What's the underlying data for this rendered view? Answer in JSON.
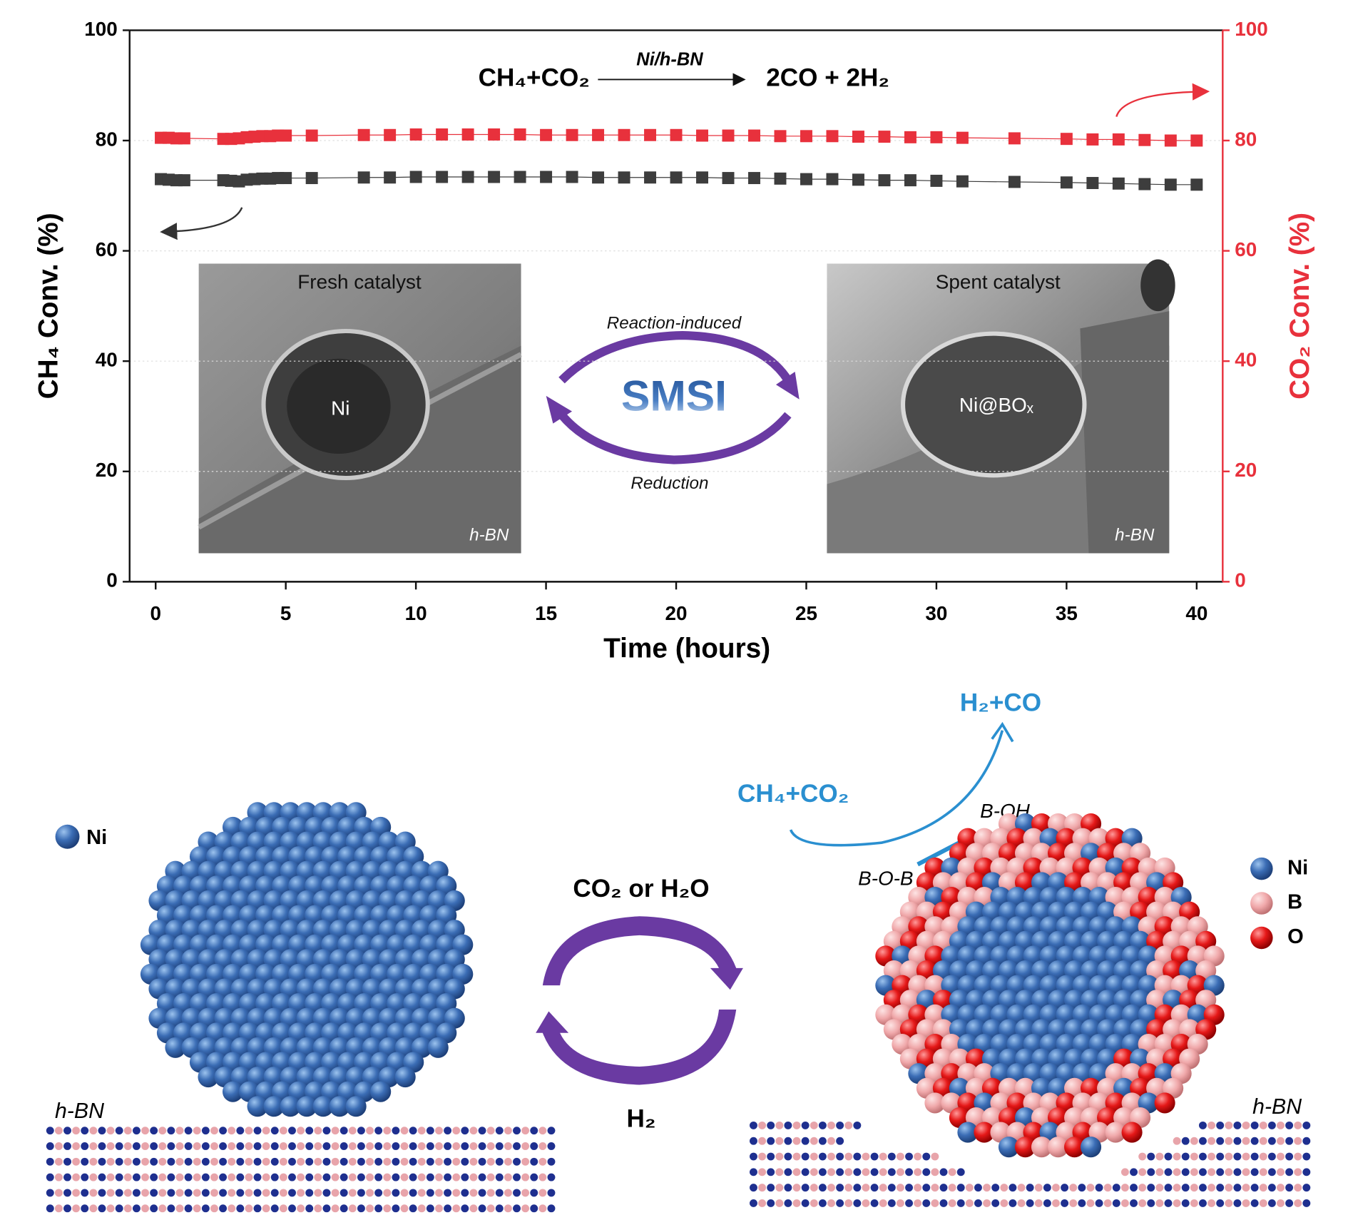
{
  "chart_data": {
    "type": "line",
    "equation": {
      "reactants": "CH₄+CO₂",
      "catalyst": "Ni/h-BN",
      "products": "2CO + 2H₂"
    },
    "x_label": "Time (hours)",
    "y_label": "CH₄ Conv. (%)",
    "y2_label": "CO₂ Conv. (%)",
    "x": [
      0.2,
      0.5,
      0.8,
      1.1,
      2.6,
      2.9,
      3.2,
      3.5,
      3.8,
      4.1,
      4.4,
      4.7,
      5,
      6,
      8,
      9,
      10,
      11,
      12,
      13,
      14,
      15,
      16,
      17,
      18,
      19,
      20,
      21,
      22,
      23,
      24,
      25,
      26,
      27,
      28,
      29,
      30,
      31,
      33,
      35,
      36,
      37,
      38,
      39,
      40
    ],
    "series": [
      {
        "name": "CH₄ Conv.",
        "color": "#3d3d3d",
        "axis": "y",
        "values": [
          73,
          72.9,
          72.8,
          72.8,
          72.8,
          72.7,
          72.6,
          72.9,
          73,
          73.1,
          73.1,
          73.2,
          73.2,
          73.2,
          73.3,
          73.3,
          73.4,
          73.4,
          73.4,
          73.4,
          73.4,
          73.4,
          73.4,
          73.3,
          73.3,
          73.3,
          73.3,
          73.3,
          73.2,
          73.2,
          73.1,
          73,
          73,
          72.9,
          72.8,
          72.8,
          72.7,
          72.6,
          72.5,
          72.4,
          72.3,
          72.2,
          72.1,
          72,
          72
        ]
      },
      {
        "name": "CO₂ Conv.",
        "color": "#e8313c",
        "axis": "y2",
        "values": [
          80.5,
          80.5,
          80.4,
          80.4,
          80.3,
          80.3,
          80.4,
          80.6,
          80.7,
          80.8,
          80.8,
          80.9,
          80.9,
          80.9,
          81,
          81,
          81.1,
          81.1,
          81.1,
          81.1,
          81.1,
          81,
          81,
          81,
          81,
          81,
          81,
          80.9,
          80.9,
          80.9,
          80.8,
          80.8,
          80.8,
          80.7,
          80.7,
          80.6,
          80.6,
          80.5,
          80.4,
          80.3,
          80.2,
          80.2,
          80.1,
          80,
          80
        ]
      }
    ],
    "xlim": [
      -1,
      41
    ],
    "xticks": [
      0,
      5,
      10,
      15,
      20,
      25,
      30,
      35,
      40
    ],
    "ylim": [
      0,
      100
    ],
    "yticks": [
      0,
      20,
      40,
      60,
      80,
      100
    ],
    "y2lim": [
      0,
      100
    ],
    "y2ticks": [
      0,
      20,
      40,
      60,
      80,
      100
    ],
    "grid": true,
    "insets": {
      "fresh": {
        "title": "Fresh catalyst",
        "particle": "Ni",
        "support": "h-BN"
      },
      "spent": {
        "title": "Spent catalyst",
        "particle": "Ni@BOₓ",
        "support": "h-BN"
      },
      "cycle": {
        "label": "SMSI",
        "top": "Reaction-induced",
        "bottom": "Reduction"
      }
    }
  },
  "diagram": {
    "legend_left": "Ni",
    "support_left": "h-BN",
    "support_right": "h-BN",
    "oxidant": "CO₂ or H₂O",
    "reductant": "H₂",
    "reactants": "CH₄+CO₂",
    "products": "H₂+CO",
    "b_oh": "B-OH",
    "b_o_b": "B-O-B",
    "legend_right": [
      "Ni",
      "B",
      "O"
    ]
  }
}
